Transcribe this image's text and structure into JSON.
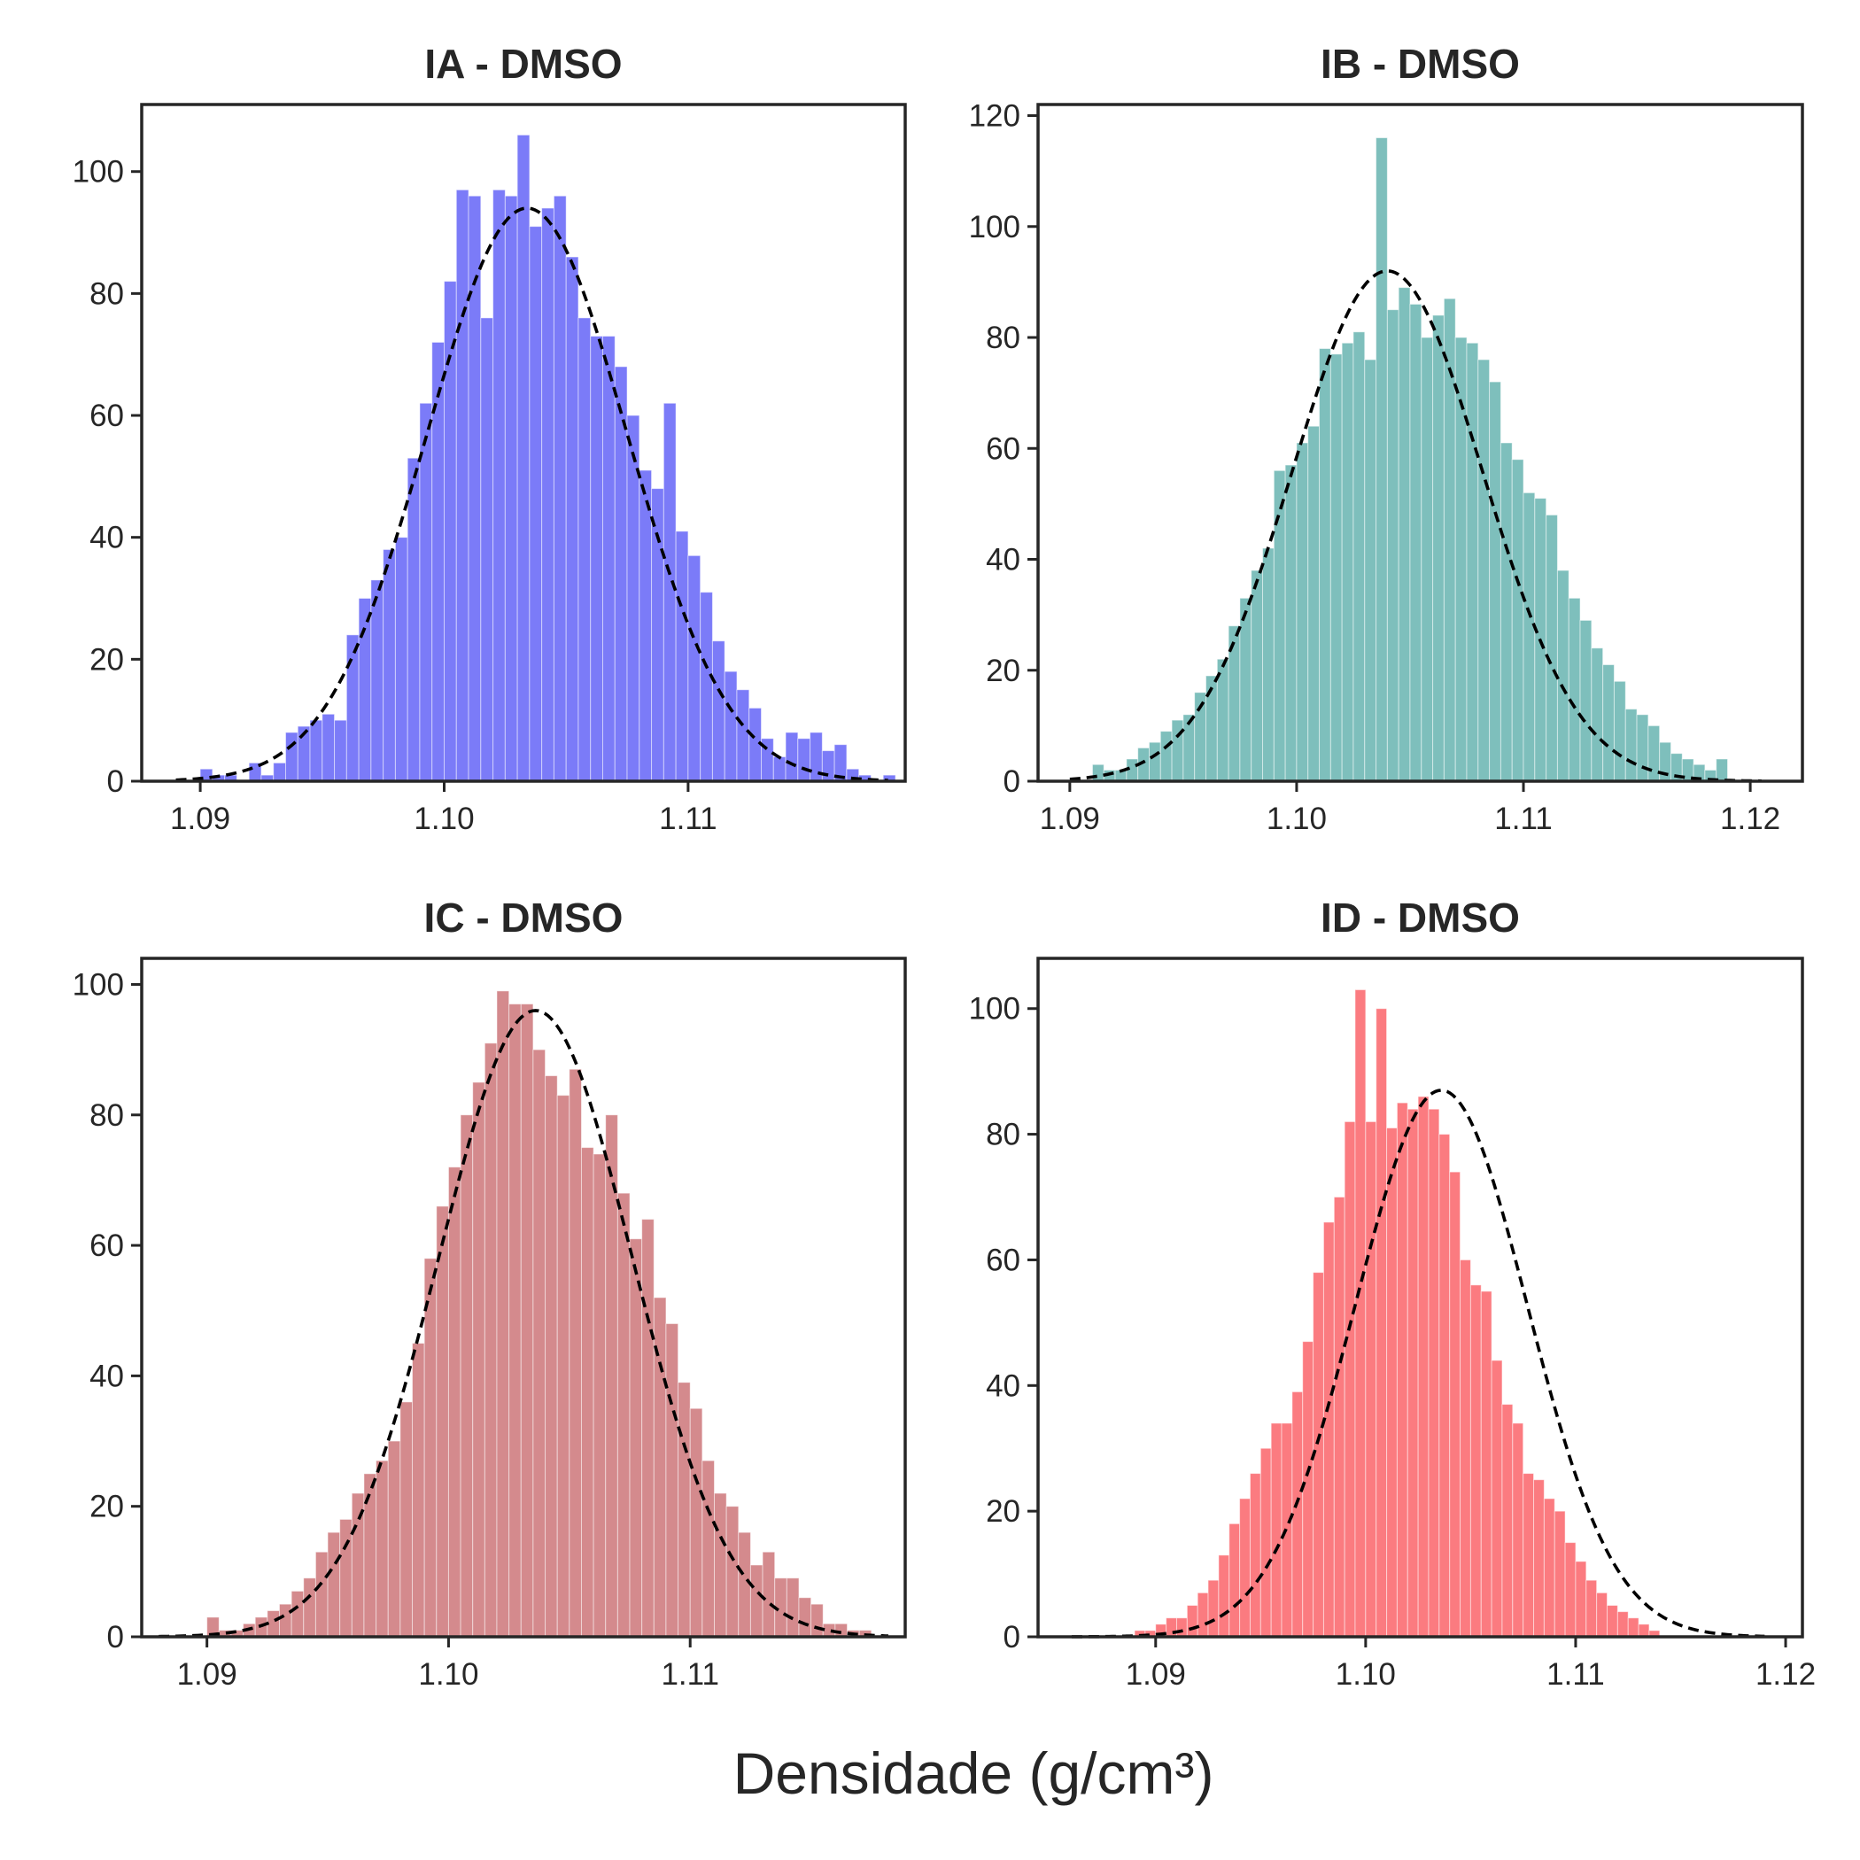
{
  "figure": {
    "xlabel": "Densidade (g/cm³)"
  },
  "chart_data": [
    {
      "type": "bar",
      "title": "IA - DMSO",
      "color": "#7b7bf8",
      "xlim": [
        1.0876,
        1.1189
      ],
      "ylim": [
        0,
        111
      ],
      "xticks": [
        "1.09",
        "1.10",
        "1.11"
      ],
      "yticks": [
        "0",
        "20",
        "40",
        "60",
        "80",
        "100"
      ],
      "bin_start": 1.09,
      "bin_width": 0.0005,
      "values": [
        2,
        1,
        1,
        0,
        3,
        1,
        3,
        8,
        9,
        10,
        11,
        10,
        24,
        30,
        33,
        38,
        40,
        53,
        62,
        72,
        82,
        97,
        96,
        76,
        97,
        96,
        106,
        91,
        94,
        96,
        86,
        76,
        73,
        73,
        68,
        60,
        51,
        48,
        62,
        41,
        37,
        31,
        23,
        18,
        15,
        12,
        7,
        4,
        8,
        7,
        8,
        5,
        6,
        2,
        1,
        0,
        1
      ],
      "fit": {
        "mean": 1.1034,
        "sd": 0.0041,
        "peak": 94,
        "range": [
          1.089,
          1.1182
        ]
      }
    },
    {
      "type": "bar",
      "title": "IB - DMSO",
      "color": "#7ebfbc",
      "xlim": [
        1.0886,
        1.1223
      ],
      "ylim": [
        0,
        122
      ],
      "xticks": [
        "1.09",
        "1.10",
        "1.11",
        "1.12"
      ],
      "yticks": [
        "0",
        "20",
        "40",
        "60",
        "80",
        "100",
        "120"
      ],
      "bin_start": 1.091,
      "bin_width": 0.0005,
      "values": [
        3,
        2,
        2,
        4,
        6,
        7,
        9,
        11,
        12,
        16,
        19,
        22,
        28,
        33,
        38,
        42,
        56,
        57,
        61,
        64,
        78,
        77,
        79,
        81,
        76,
        116,
        85,
        89,
        86,
        80,
        84,
        87,
        80,
        79,
        76,
        72,
        61,
        58,
        52,
        51,
        48,
        38,
        33,
        29,
        24,
        21,
        18,
        13,
        12,
        10,
        7,
        5,
        4,
        3,
        2,
        4
      ],
      "fit": {
        "mean": 1.104,
        "sd": 0.0042,
        "peak": 92,
        "range": [
          1.09,
          1.1205
        ]
      }
    },
    {
      "type": "bar",
      "title": "IC - DMSO",
      "color": "#d48a8d",
      "xlim": [
        1.0873,
        1.1189
      ],
      "ylim": [
        0,
        104
      ],
      "xticks": [
        "1.09",
        "1.10",
        "1.11"
      ],
      "yticks": [
        "0",
        "20",
        "40",
        "60",
        "80",
        "100"
      ],
      "bin_start": 1.09,
      "bin_width": 0.0005,
      "values": [
        3,
        1,
        1,
        2,
        3,
        4,
        5,
        7,
        9,
        13,
        16,
        18,
        22,
        25,
        27,
        30,
        36,
        45,
        58,
        66,
        72,
        80,
        85,
        91,
        99,
        97,
        97,
        90,
        86,
        83,
        87,
        75,
        74,
        80,
        68,
        61,
        64,
        52,
        48,
        39,
        35,
        27,
        22,
        20,
        16,
        11,
        13,
        9,
        9,
        6,
        5,
        2,
        2,
        1,
        1
      ],
      "fit": {
        "mean": 1.1036,
        "sd": 0.004,
        "peak": 96,
        "range": [
          1.088,
          1.1182
        ]
      }
    },
    {
      "type": "bar",
      "title": "ID - DMSO",
      "color": "#fb7b80",
      "xlim": [
        1.0844,
        1.1208
      ],
      "ylim": [
        0,
        108
      ],
      "xticks": [
        "1.09",
        "1.10",
        "1.11",
        "1.12"
      ],
      "yticks": [
        "0",
        "20",
        "40",
        "60",
        "80",
        "100"
      ],
      "bin_start": 1.089,
      "bin_width": 0.0005,
      "values": [
        1,
        1,
        2,
        3,
        3,
        5,
        7,
        9,
        13,
        18,
        22,
        26,
        30,
        34,
        34,
        39,
        47,
        58,
        66,
        70,
        82,
        103,
        82,
        100,
        81,
        85,
        84,
        86,
        84,
        80,
        74,
        60,
        56,
        55,
        44,
        37,
        34,
        26,
        25,
        22,
        20,
        15,
        12,
        9,
        7,
        5,
        4,
        3,
        2,
        1
      ],
      "fit": {
        "mean": 1.1036,
        "sd": 0.0041,
        "peak": 87,
        "range": [
          1.086,
          1.119
        ]
      }
    }
  ]
}
